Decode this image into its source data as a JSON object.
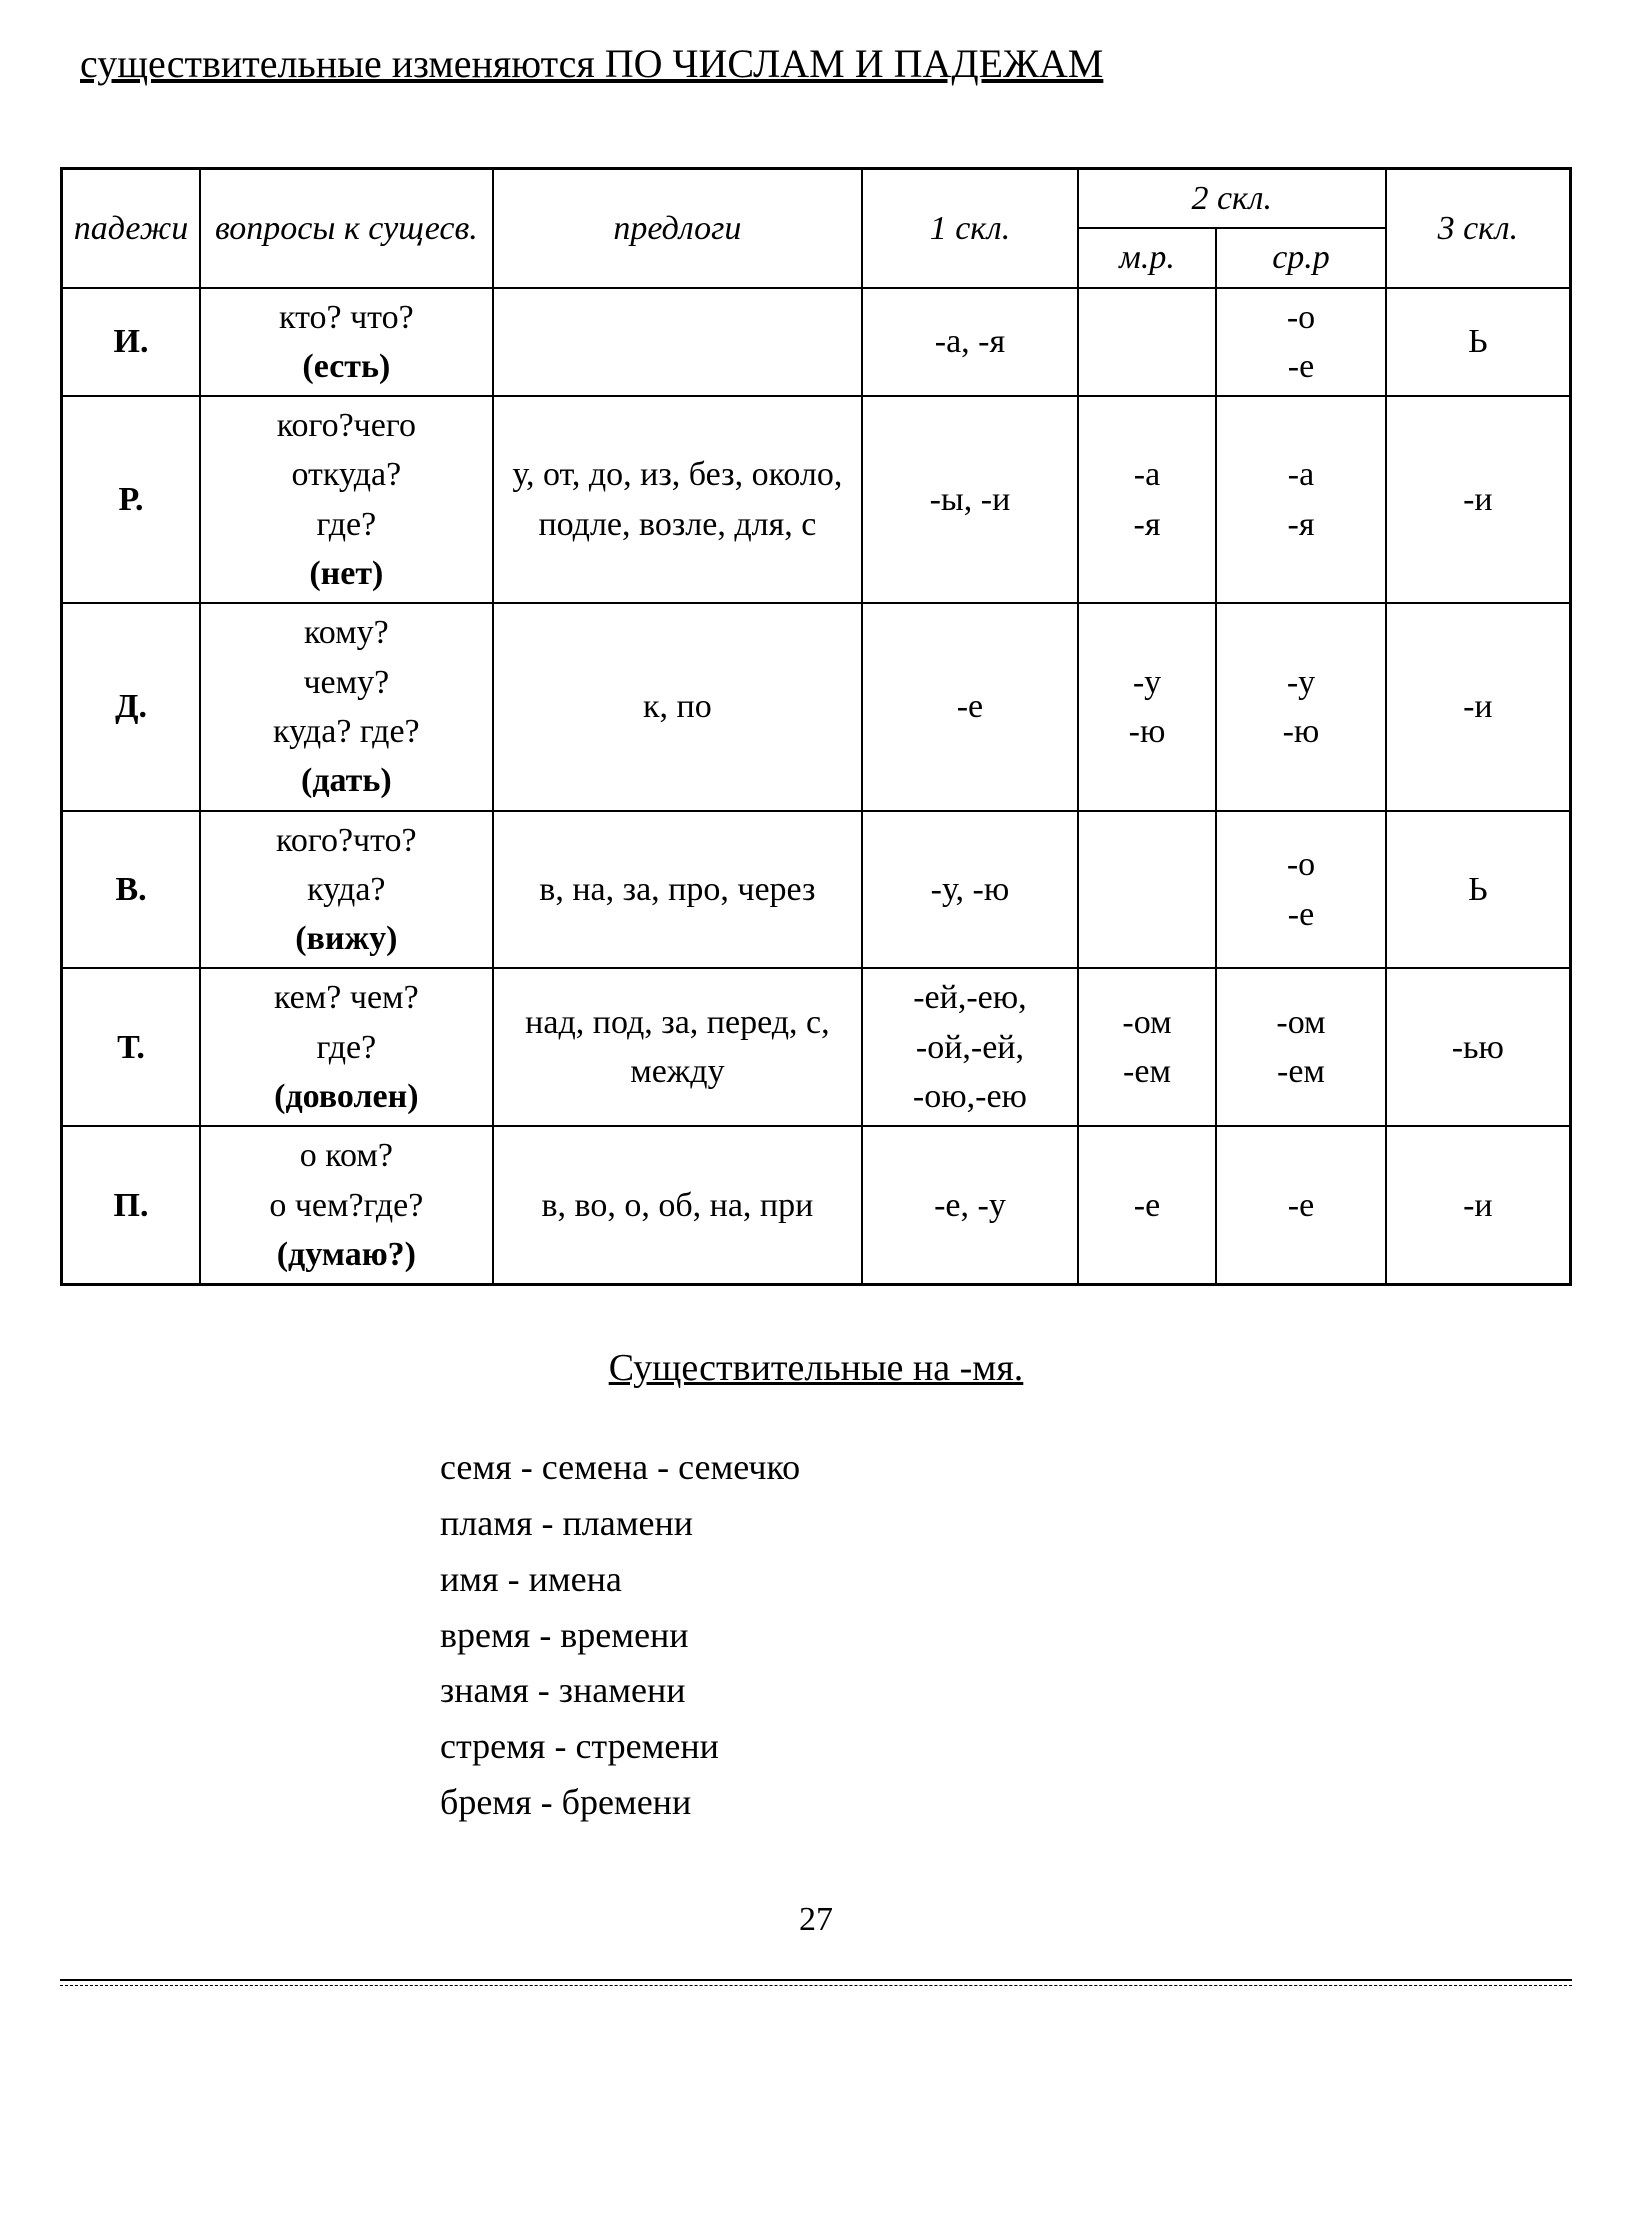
{
  "title": "существительные изменяются ПО ЧИСЛАМ И ПАДЕЖАМ",
  "header": {
    "c1": "падежи",
    "c2": "вопросы к сущесв.",
    "c3": "предлоги",
    "c4": "1 скл.",
    "c5": "2 скл.",
    "c5a": "м.р.",
    "c5b": "ср.р",
    "c6": "3 скл."
  },
  "rows": [
    {
      "case": "И.",
      "questions": [
        "кто? что?",
        "(есть)"
      ],
      "bold_idx": 1,
      "prepositions": "",
      "skl1": "-а, -я",
      "skl2a": "",
      "skl2b": "-о\n-е",
      "skl3": "Ь"
    },
    {
      "case": "Р.",
      "questions": [
        "кого?чего",
        "откуда?",
        "где?",
        "(нет)"
      ],
      "bold_idx": 3,
      "prepositions": "у, от, до, из, без, около, подле, возле, для, с",
      "skl1": "-ы, -и",
      "skl2a": "-а\n-я",
      "skl2b": "-а\n-я",
      "skl3": "-и"
    },
    {
      "case": "Д.",
      "questions": [
        "кому?",
        "чему?",
        "куда? где?",
        "(дать)"
      ],
      "bold_idx": 3,
      "prepositions": "к, по",
      "skl1": "-е",
      "skl2a": "-у\n-ю",
      "skl2b": "-у\n-ю",
      "skl3": "-и"
    },
    {
      "case": "В.",
      "questions": [
        "кого?что?",
        "куда?",
        "(вижу)"
      ],
      "bold_idx": 2,
      "prepositions": "в, на, за, про, через",
      "skl1": "-у, -ю",
      "skl2a": "",
      "skl2b": "-о\n-е",
      "skl3": "Ь"
    },
    {
      "case": "Т.",
      "questions": [
        "кем? чем?",
        "где?",
        "(доволен)"
      ],
      "bold_idx": 2,
      "prepositions": "над, под, за, перед, с, между",
      "skl1": "-ей,-ею,\n-ой,-ей,\n-ою,-ею",
      "skl2a": "-ом\n-ем",
      "skl2b": "-ом\n-ем",
      "skl3": "-ью"
    },
    {
      "case": "П.",
      "questions": [
        "о ком?",
        "о чем?где?",
        "(думаю?)"
      ],
      "bold_idx": 2,
      "prepositions": "в, во, о, об, на, при",
      "skl1": "-е, -у",
      "skl2a": "-е",
      "skl2b": "-е",
      "skl3": "-и"
    }
  ],
  "sub_title": "Существительные на -мя.",
  "list": [
    "семя - семена - семечко",
    "пламя - пламени",
    "имя  - имена",
    "время - времени",
    "знамя - знамени",
    "стремя - стремени",
    "бремя - бремени"
  ],
  "page": "27"
}
